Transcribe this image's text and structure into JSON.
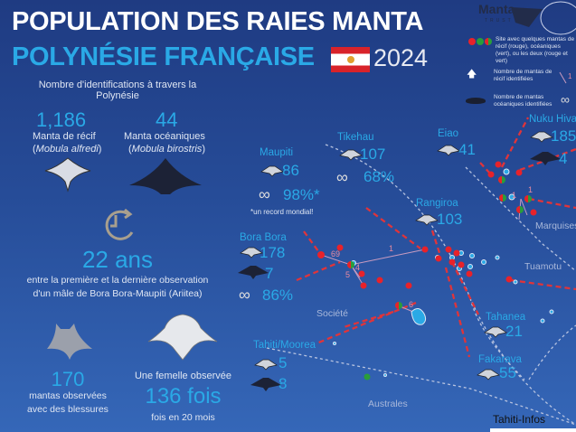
{
  "header": {
    "title_line1": "POPULATION DES RAIES MANTA",
    "title_line2": "POLYNÉSIE FRANÇAISE",
    "year": "2024"
  },
  "logo": {
    "name": "Manta",
    "sub": "TRUST"
  },
  "legend": {
    "sites": "Site avec quelques mantas de récif (rouge), océaniques (vert), ou les deux (rouge et vert)",
    "reef_count": "Nombre de mantas de récif identifiées",
    "oceanic_count": "Nombre de mantas océaniques identifiées",
    "line_number": "1"
  },
  "stats": {
    "ident_title": "Nombre d'identifications à travers la Polynésie",
    "reef": {
      "value": "1,186",
      "label": "Manta de récif",
      "species": "Mobula alfredi"
    },
    "oceanic": {
      "value": "44",
      "label": "Manta océaniques",
      "species": "Mobula birostris"
    },
    "years": {
      "value": "22 ans",
      "desc1": "entre la première et la dernière observation",
      "desc2": "d'un mâle de Bora Bora-Maupiti (Ariitea)"
    },
    "injured": {
      "value": "170",
      "desc1": "mantas observées",
      "desc2": "avec des blessures"
    },
    "female": {
      "intro": "Une femelle observée",
      "value": "136 fois",
      "desc": "fois en 20 mois"
    }
  },
  "map": {
    "sites": [
      {
        "name": "Tikehau",
        "reef": "107",
        "resight": "68%"
      },
      {
        "name": "Maupiti",
        "reef": "86",
        "resight": "98%*",
        "note": "*un record mondial!"
      },
      {
        "name": "Bora Bora",
        "reef": "178",
        "oceanic": "7",
        "resight": "86%"
      },
      {
        "name": "Eiao",
        "reef": "41"
      },
      {
        "name": "Nuku Hiva",
        "reef": "185",
        "oceanic": "4"
      },
      {
        "name": "Rangiroa",
        "reef": "103"
      },
      {
        "name": "Tahanea",
        "reef": "21"
      },
      {
        "name": "Tahiti/Moorea",
        "reef": "5",
        "oceanic": "8"
      },
      {
        "name": "Fakarava",
        "reef": "55"
      }
    ],
    "regions": [
      "Marquises",
      "Tuamotu",
      "Société",
      "Australes"
    ],
    "movements": [
      "69",
      "1",
      "4",
      "5",
      "6",
      "1",
      "1"
    ]
  },
  "watermark": "Tahiti-Infos",
  "colors": {
    "bg": "#264c98",
    "accent": "#2aa9e6",
    "reef_site": "#e8222a",
    "oceanic_site": "#2a9d3a"
  }
}
